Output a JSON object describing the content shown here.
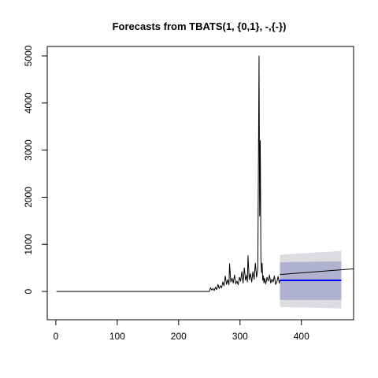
{
  "chart_data": {
    "type": "line",
    "title": "Forecasts from TBATS(1, {0,1}, -,{-})",
    "xlabel": "",
    "ylabel": "",
    "xlim": [
      -14,
      485
    ],
    "ylim": [
      -600,
      5200
    ],
    "x_ticks": [
      0,
      100,
      200,
      300,
      400
    ],
    "y_ticks": [
      0,
      1000,
      2000,
      3000,
      4000,
      5000
    ],
    "grid": false,
    "colors": {
      "history_line": "#000000",
      "forecast_mean": "#0000ff",
      "interval_80": "#b0b3d0",
      "interval_95": "#dcdce1",
      "trend_line": "#000000"
    },
    "series": [
      {
        "role": "history",
        "x": [
          1,
          50,
          100,
          150,
          200,
          250,
          252,
          254,
          256,
          258,
          260,
          262,
          264,
          266,
          268,
          270,
          272,
          274,
          276,
          278,
          280,
          282,
          283,
          285,
          287,
          289,
          291,
          293,
          295,
          297,
          299,
          301,
          303,
          305,
          307,
          309,
          311,
          312,
          313,
          315,
          317,
          319,
          321,
          323,
          325,
          327,
          329,
          330,
          331,
          332,
          333,
          334,
          335,
          336,
          337,
          338,
          339,
          340,
          342,
          344,
          346,
          348,
          350,
          352,
          354,
          356,
          358,
          360,
          362,
          364,
          365
        ],
        "y": [
          0,
          0,
          0,
          0,
          0,
          0,
          80,
          30,
          60,
          20,
          90,
          40,
          150,
          60,
          120,
          80,
          200,
          120,
          330,
          150,
          250,
          140,
          590,
          200,
          280,
          180,
          350,
          160,
          220,
          140,
          300,
          220,
          420,
          180,
          500,
          240,
          340,
          200,
          760,
          250,
          380,
          200,
          420,
          260,
          600,
          300,
          480,
          2700,
          5000,
          1600,
          3200,
          700,
          400,
          600,
          240,
          330,
          180,
          280,
          160,
          300,
          220,
          350,
          180,
          260,
          200,
          330,
          150,
          200,
          320,
          180,
          240
        ]
      },
      {
        "role": "forecast_mean",
        "x": [
          365,
          465
        ],
        "y": [
          235,
          235
        ]
      },
      {
        "role": "forecast_interval_80",
        "x": [
          365,
          465
        ],
        "lower": [
          -180,
          -180
        ],
        "upper": [
          620,
          640
        ]
      },
      {
        "role": "forecast_interval_95",
        "x": [
          365,
          465
        ],
        "lower": [
          -330,
          -360
        ],
        "upper": [
          780,
          860
        ]
      },
      {
        "role": "trend",
        "x": [
          365,
          485
        ],
        "y": [
          360,
          480
        ]
      }
    ]
  }
}
